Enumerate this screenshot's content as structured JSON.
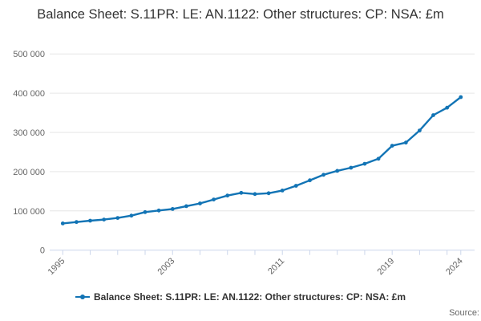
{
  "title": "Balance Sheet: S.11PR: LE: AN.1122: Other structures: CP: NSA: £m",
  "legend": {
    "label": "Balance Sheet: S.11PR: LE: AN.1122: Other structures: CP: NSA: £m"
  },
  "source": {
    "label": "Source:"
  },
  "colors": {
    "series": "#1274b5",
    "grid": "#e6e6e6",
    "axis": "#ccd6eb",
    "labels": "#666666",
    "title": "#333333"
  },
  "chart_data": {
    "type": "line",
    "title": "Balance Sheet: S.11PR: LE: AN.1122: Other structures: CP: NSA: £m",
    "xlabel": "",
    "ylabel": "",
    "x": [
      1995,
      1996,
      1997,
      1998,
      1999,
      2000,
      2001,
      2002,
      2003,
      2004,
      2005,
      2006,
      2007,
      2008,
      2009,
      2010,
      2011,
      2012,
      2013,
      2014,
      2015,
      2016,
      2017,
      2018,
      2019,
      2020,
      2021,
      2022,
      2023,
      2024
    ],
    "series": [
      {
        "name": "Balance Sheet: S.11PR: LE: AN.1122: Other structures: CP: NSA: £m",
        "values": [
          68000,
          71500,
          75000,
          78000,
          82000,
          88000,
          97000,
          101000,
          105000,
          112000,
          119000,
          129000,
          139000,
          146000,
          143000,
          145000,
          152000,
          164000,
          178000,
          192000,
          202000,
          210000,
          220000,
          233000,
          266000,
          274000,
          305000,
          344000,
          363000,
          390000
        ]
      }
    ],
    "ylim": [
      0,
      500000
    ],
    "yticks": {
      "values": [
        0,
        100000,
        200000,
        300000,
        400000,
        500000
      ],
      "labels": [
        "0",
        "100 000",
        "200 000",
        "300 000",
        "400 000",
        "500 000"
      ]
    },
    "xticks": {
      "tick_years": [
        1995,
        1997,
        1999,
        2001,
        2003,
        2005,
        2007,
        2009,
        2011,
        2013,
        2015,
        2017,
        2019,
        2021,
        2023,
        2024
      ],
      "labeled_years": [
        "1995",
        "2003",
        "2011",
        "2019",
        "2024"
      ],
      "labeled_year_values": [
        1995,
        2003,
        2011,
        2019,
        2024
      ],
      "label_rotation": -45
    },
    "grid": "horizontal",
    "legend_position": "bottom",
    "marker": "circle"
  }
}
